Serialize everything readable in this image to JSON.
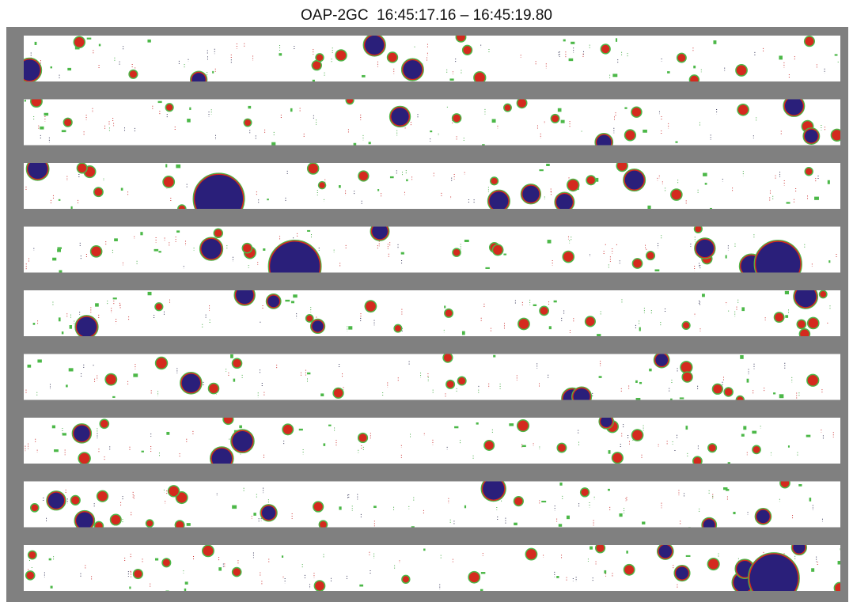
{
  "header": {
    "title": "OAP-2GC  16:45:17.16 – 16:45:19.80"
  }
}
